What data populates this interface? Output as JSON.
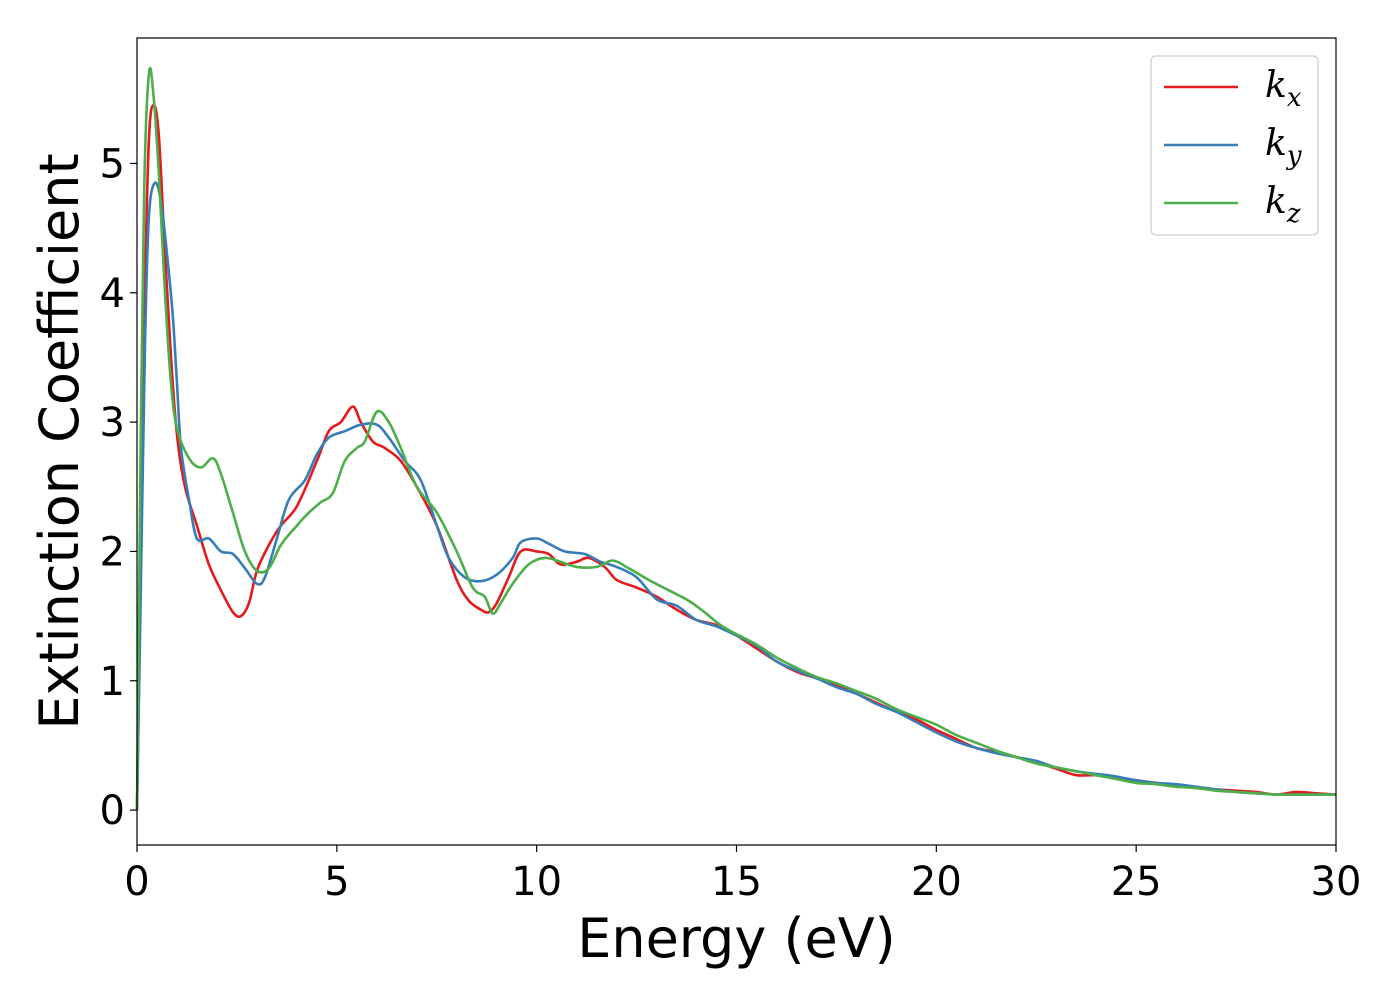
{
  "chart_data": {
    "type": "line",
    "xlabel": "Energy (eV)",
    "ylabel": "Extinction Coefficient",
    "xlim": [
      0,
      30
    ],
    "ylim": [
      -0.27,
      5.97
    ],
    "x_ticks": [
      0,
      5,
      10,
      15,
      20,
      25,
      30
    ],
    "y_ticks": [
      0,
      1,
      2,
      3,
      4,
      5
    ],
    "grid": false,
    "legend_position": "top-right",
    "series": [
      {
        "name": "kx",
        "base": "k",
        "sub": "x",
        "color": "#e41a1c",
        "points": [
          [
            0,
            0
          ],
          [
            0.1,
            2.0
          ],
          [
            0.2,
            4.0
          ],
          [
            0.3,
            5.2
          ],
          [
            0.42,
            5.45
          ],
          [
            0.55,
            5.2
          ],
          [
            0.7,
            4.3
          ],
          [
            0.85,
            3.5
          ],
          [
            1.0,
            2.9
          ],
          [
            1.2,
            2.5
          ],
          [
            1.5,
            2.2
          ],
          [
            1.8,
            1.9
          ],
          [
            2.1,
            1.7
          ],
          [
            2.4,
            1.53
          ],
          [
            2.6,
            1.5
          ],
          [
            2.8,
            1.6
          ],
          [
            3.0,
            1.85
          ],
          [
            3.3,
            2.05
          ],
          [
            3.6,
            2.2
          ],
          [
            4.0,
            2.35
          ],
          [
            4.5,
            2.7
          ],
          [
            4.8,
            2.93
          ],
          [
            5.1,
            3.0
          ],
          [
            5.4,
            3.12
          ],
          [
            5.6,
            3.0
          ],
          [
            5.9,
            2.85
          ],
          [
            6.2,
            2.8
          ],
          [
            6.6,
            2.7
          ],
          [
            7.0,
            2.5
          ],
          [
            7.5,
            2.2
          ],
          [
            8.0,
            1.78
          ],
          [
            8.3,
            1.62
          ],
          [
            8.6,
            1.55
          ],
          [
            8.8,
            1.53
          ],
          [
            9.0,
            1.6
          ],
          [
            9.3,
            1.8
          ],
          [
            9.6,
            2.0
          ],
          [
            10.0,
            2.0
          ],
          [
            10.3,
            1.98
          ],
          [
            10.6,
            1.9
          ],
          [
            11.0,
            1.92
          ],
          [
            11.3,
            1.95
          ],
          [
            11.7,
            1.88
          ],
          [
            12.0,
            1.78
          ],
          [
            12.5,
            1.72
          ],
          [
            13.0,
            1.65
          ],
          [
            13.5,
            1.55
          ],
          [
            14.0,
            1.47
          ],
          [
            14.5,
            1.43
          ],
          [
            15.0,
            1.35
          ],
          [
            15.5,
            1.25
          ],
          [
            16.0,
            1.15
          ],
          [
            16.5,
            1.07
          ],
          [
            17.0,
            1.02
          ],
          [
            17.5,
            0.97
          ],
          [
            18.0,
            0.9
          ],
          [
            18.5,
            0.83
          ],
          [
            19.0,
            0.76
          ],
          [
            19.5,
            0.7
          ],
          [
            20.0,
            0.62
          ],
          [
            20.5,
            0.55
          ],
          [
            21.0,
            0.48
          ],
          [
            21.5,
            0.45
          ],
          [
            22.0,
            0.41
          ],
          [
            22.5,
            0.37
          ],
          [
            23.0,
            0.32
          ],
          [
            23.5,
            0.27
          ],
          [
            24.0,
            0.27
          ],
          [
            24.5,
            0.25
          ],
          [
            25.0,
            0.23
          ],
          [
            25.5,
            0.21
          ],
          [
            26.0,
            0.19
          ],
          [
            26.5,
            0.17
          ],
          [
            27.0,
            0.16
          ],
          [
            27.5,
            0.15
          ],
          [
            28.0,
            0.14
          ],
          [
            28.5,
            0.12
          ],
          [
            29.0,
            0.14
          ],
          [
            29.5,
            0.13
          ],
          [
            30.0,
            0.12
          ]
        ]
      },
      {
        "name": "ky",
        "base": "k",
        "sub": "y",
        "color": "#377eb8",
        "points": [
          [
            0,
            0
          ],
          [
            0.1,
            1.8
          ],
          [
            0.2,
            3.6
          ],
          [
            0.3,
            4.6
          ],
          [
            0.45,
            4.85
          ],
          [
            0.6,
            4.7
          ],
          [
            0.75,
            4.3
          ],
          [
            0.9,
            3.8
          ],
          [
            1.0,
            3.3
          ],
          [
            1.1,
            2.8
          ],
          [
            1.3,
            2.4
          ],
          [
            1.5,
            2.1
          ],
          [
            1.8,
            2.1
          ],
          [
            2.1,
            2.0
          ],
          [
            2.4,
            1.98
          ],
          [
            2.7,
            1.87
          ],
          [
            3.0,
            1.75
          ],
          [
            3.2,
            1.8
          ],
          [
            3.5,
            2.1
          ],
          [
            3.8,
            2.4
          ],
          [
            4.2,
            2.55
          ],
          [
            4.5,
            2.75
          ],
          [
            4.8,
            2.88
          ],
          [
            5.2,
            2.93
          ],
          [
            5.6,
            2.98
          ],
          [
            6.0,
            2.98
          ],
          [
            6.3,
            2.88
          ],
          [
            6.7,
            2.7
          ],
          [
            7.1,
            2.55
          ],
          [
            7.5,
            2.2
          ],
          [
            7.8,
            1.95
          ],
          [
            8.2,
            1.8
          ],
          [
            8.6,
            1.77
          ],
          [
            9.0,
            1.82
          ],
          [
            9.4,
            1.95
          ],
          [
            9.6,
            2.07
          ],
          [
            10.0,
            2.1
          ],
          [
            10.3,
            2.06
          ],
          [
            10.7,
            2.0
          ],
          [
            11.2,
            1.98
          ],
          [
            11.6,
            1.92
          ],
          [
            12.0,
            1.88
          ],
          [
            12.5,
            1.8
          ],
          [
            13.0,
            1.63
          ],
          [
            13.5,
            1.58
          ],
          [
            14.0,
            1.47
          ],
          [
            14.5,
            1.42
          ],
          [
            15.0,
            1.35
          ],
          [
            15.5,
            1.27
          ],
          [
            16.0,
            1.15
          ],
          [
            16.5,
            1.08
          ],
          [
            17.0,
            1.02
          ],
          [
            17.5,
            0.95
          ],
          [
            18.0,
            0.9
          ],
          [
            18.5,
            0.82
          ],
          [
            19.0,
            0.76
          ],
          [
            19.5,
            0.68
          ],
          [
            20.0,
            0.6
          ],
          [
            20.5,
            0.53
          ],
          [
            21.0,
            0.48
          ],
          [
            21.5,
            0.44
          ],
          [
            22.0,
            0.41
          ],
          [
            22.5,
            0.38
          ],
          [
            23.0,
            0.33
          ],
          [
            23.5,
            0.3
          ],
          [
            24.0,
            0.28
          ],
          [
            24.5,
            0.26
          ],
          [
            25.0,
            0.23
          ],
          [
            25.5,
            0.21
          ],
          [
            26.0,
            0.2
          ],
          [
            26.5,
            0.18
          ],
          [
            27.0,
            0.16
          ],
          [
            27.5,
            0.14
          ],
          [
            28.0,
            0.13
          ],
          [
            28.5,
            0.12
          ],
          [
            29.0,
            0.12
          ],
          [
            29.5,
            0.12
          ],
          [
            30.0,
            0.12
          ]
        ]
      },
      {
        "name": "kz",
        "base": "k",
        "sub": "z",
        "color": "#4daf4a",
        "points": [
          [
            0,
            0
          ],
          [
            0.08,
            2.5
          ],
          [
            0.18,
            4.8
          ],
          [
            0.3,
            5.7
          ],
          [
            0.42,
            5.5
          ],
          [
            0.55,
            4.9
          ],
          [
            0.7,
            4.0
          ],
          [
            0.85,
            3.3
          ],
          [
            1.0,
            2.95
          ],
          [
            1.3,
            2.72
          ],
          [
            1.6,
            2.65
          ],
          [
            1.9,
            2.72
          ],
          [
            2.1,
            2.6
          ],
          [
            2.4,
            2.3
          ],
          [
            2.7,
            2.0
          ],
          [
            3.0,
            1.85
          ],
          [
            3.3,
            1.87
          ],
          [
            3.6,
            2.05
          ],
          [
            4.0,
            2.2
          ],
          [
            4.3,
            2.3
          ],
          [
            4.6,
            2.38
          ],
          [
            4.9,
            2.45
          ],
          [
            5.2,
            2.7
          ],
          [
            5.5,
            2.8
          ],
          [
            5.7,
            2.85
          ],
          [
            6.0,
            3.08
          ],
          [
            6.3,
            3.0
          ],
          [
            6.6,
            2.8
          ],
          [
            7.0,
            2.5
          ],
          [
            7.5,
            2.3
          ],
          [
            8.0,
            2.0
          ],
          [
            8.4,
            1.72
          ],
          [
            8.7,
            1.65
          ],
          [
            8.9,
            1.52
          ],
          [
            9.1,
            1.6
          ],
          [
            9.4,
            1.75
          ],
          [
            9.8,
            1.9
          ],
          [
            10.2,
            1.95
          ],
          [
            10.6,
            1.92
          ],
          [
            11.0,
            1.88
          ],
          [
            11.5,
            1.88
          ],
          [
            11.9,
            1.93
          ],
          [
            12.3,
            1.87
          ],
          [
            12.8,
            1.78
          ],
          [
            13.3,
            1.7
          ],
          [
            13.8,
            1.62
          ],
          [
            14.2,
            1.53
          ],
          [
            14.6,
            1.43
          ],
          [
            15.0,
            1.36
          ],
          [
            15.5,
            1.28
          ],
          [
            16.0,
            1.18
          ],
          [
            16.5,
            1.1
          ],
          [
            17.0,
            1.03
          ],
          [
            17.5,
            0.98
          ],
          [
            18.0,
            0.92
          ],
          [
            18.5,
            0.86
          ],
          [
            19.0,
            0.78
          ],
          [
            19.5,
            0.72
          ],
          [
            20.0,
            0.66
          ],
          [
            20.5,
            0.58
          ],
          [
            21.0,
            0.52
          ],
          [
            21.5,
            0.46
          ],
          [
            22.0,
            0.41
          ],
          [
            22.5,
            0.36
          ],
          [
            23.0,
            0.33
          ],
          [
            23.5,
            0.3
          ],
          [
            24.0,
            0.27
          ],
          [
            24.5,
            0.24
          ],
          [
            25.0,
            0.21
          ],
          [
            25.5,
            0.2
          ],
          [
            26.0,
            0.18
          ],
          [
            26.5,
            0.17
          ],
          [
            27.0,
            0.15
          ],
          [
            27.5,
            0.14
          ],
          [
            28.0,
            0.13
          ],
          [
            28.5,
            0.12
          ],
          [
            29.0,
            0.12
          ],
          [
            29.5,
            0.12
          ],
          [
            30.0,
            0.12
          ]
        ]
      }
    ]
  }
}
